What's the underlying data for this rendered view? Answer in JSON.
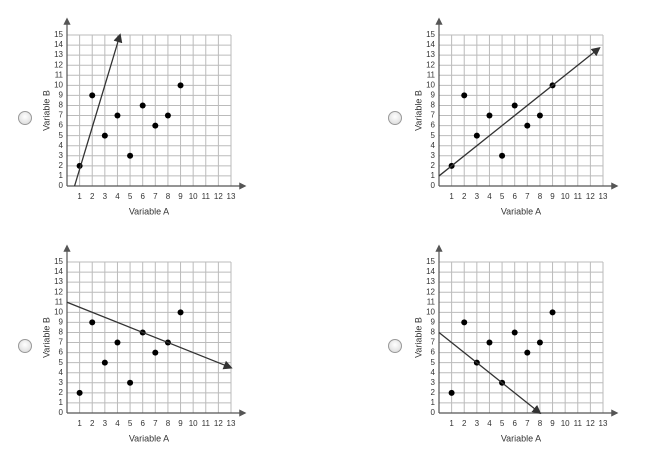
{
  "chart_data": [
    {
      "type": "scatter",
      "x": [
        1,
        2,
        3,
        4,
        5,
        6,
        7,
        8,
        9
      ],
      "values": [
        2,
        9,
        5,
        7,
        3,
        8,
        6,
        7,
        10
      ],
      "color": "#000000",
      "xlim": [
        0,
        13
      ],
      "ylim": [
        0,
        15
      ],
      "xticks": [
        1,
        2,
        3,
        4,
        5,
        6,
        7,
        8,
        9,
        10,
        11,
        12,
        13
      ],
      "yticks": [
        0,
        1,
        2,
        3,
        4,
        5,
        6,
        7,
        8,
        9,
        10,
        11,
        12,
        13,
        14,
        15
      ],
      "xlabel": "Variable A",
      "ylabel": "Variable B",
      "grid": true,
      "line": {
        "x": [
          0.6,
          4.2
        ],
        "y": [
          0,
          15
        ],
        "color": "#333333"
      }
    },
    {
      "type": "scatter",
      "x": [
        1,
        2,
        3,
        4,
        5,
        6,
        7,
        8,
        9
      ],
      "values": [
        2,
        9,
        5,
        7,
        3,
        8,
        6,
        7,
        10
      ],
      "color": "#000000",
      "xlim": [
        0,
        13
      ],
      "ylim": [
        0,
        15
      ],
      "xticks": [
        1,
        2,
        3,
        4,
        5,
        6,
        7,
        8,
        9,
        10,
        11,
        12,
        13
      ],
      "yticks": [
        0,
        1,
        2,
        3,
        4,
        5,
        6,
        7,
        8,
        9,
        10,
        11,
        12,
        13,
        14,
        15
      ],
      "xlabel": "Variable A",
      "ylabel": "Variable B",
      "grid": true,
      "line": {
        "x": [
          0,
          12.7
        ],
        "y": [
          1,
          13.7
        ],
        "color": "#333333"
      }
    },
    {
      "type": "scatter",
      "x": [
        1,
        2,
        3,
        4,
        5,
        6,
        7,
        8,
        9
      ],
      "values": [
        2,
        9,
        5,
        7,
        3,
        8,
        6,
        7,
        10
      ],
      "color": "#000000",
      "xlim": [
        0,
        13
      ],
      "ylim": [
        0,
        15
      ],
      "xticks": [
        1,
        2,
        3,
        4,
        5,
        6,
        7,
        8,
        9,
        10,
        11,
        12,
        13
      ],
      "yticks": [
        0,
        1,
        2,
        3,
        4,
        5,
        6,
        7,
        8,
        9,
        10,
        11,
        12,
        13,
        14,
        15
      ],
      "xlabel": "Variable A",
      "ylabel": "Variable B",
      "grid": true,
      "line": {
        "x": [
          0,
          13
        ],
        "y": [
          11,
          4.5
        ],
        "color": "#333333"
      }
    },
    {
      "type": "scatter",
      "x": [
        1,
        2,
        3,
        4,
        5,
        6,
        7,
        8,
        9
      ],
      "values": [
        2,
        9,
        5,
        7,
        3,
        8,
        6,
        7,
        10
      ],
      "color": "#000000",
      "xlim": [
        0,
        13
      ],
      "ylim": [
        0,
        15
      ],
      "xticks": [
        1,
        2,
        3,
        4,
        5,
        6,
        7,
        8,
        9,
        10,
        11,
        12,
        13
      ],
      "yticks": [
        0,
        1,
        2,
        3,
        4,
        5,
        6,
        7,
        8,
        9,
        10,
        11,
        12,
        13,
        14,
        15
      ],
      "xlabel": "Variable A",
      "ylabel": "Variable B",
      "grid": true,
      "line": {
        "x": [
          0,
          8
        ],
        "y": [
          8,
          0
        ],
        "color": "#333333"
      }
    }
  ]
}
